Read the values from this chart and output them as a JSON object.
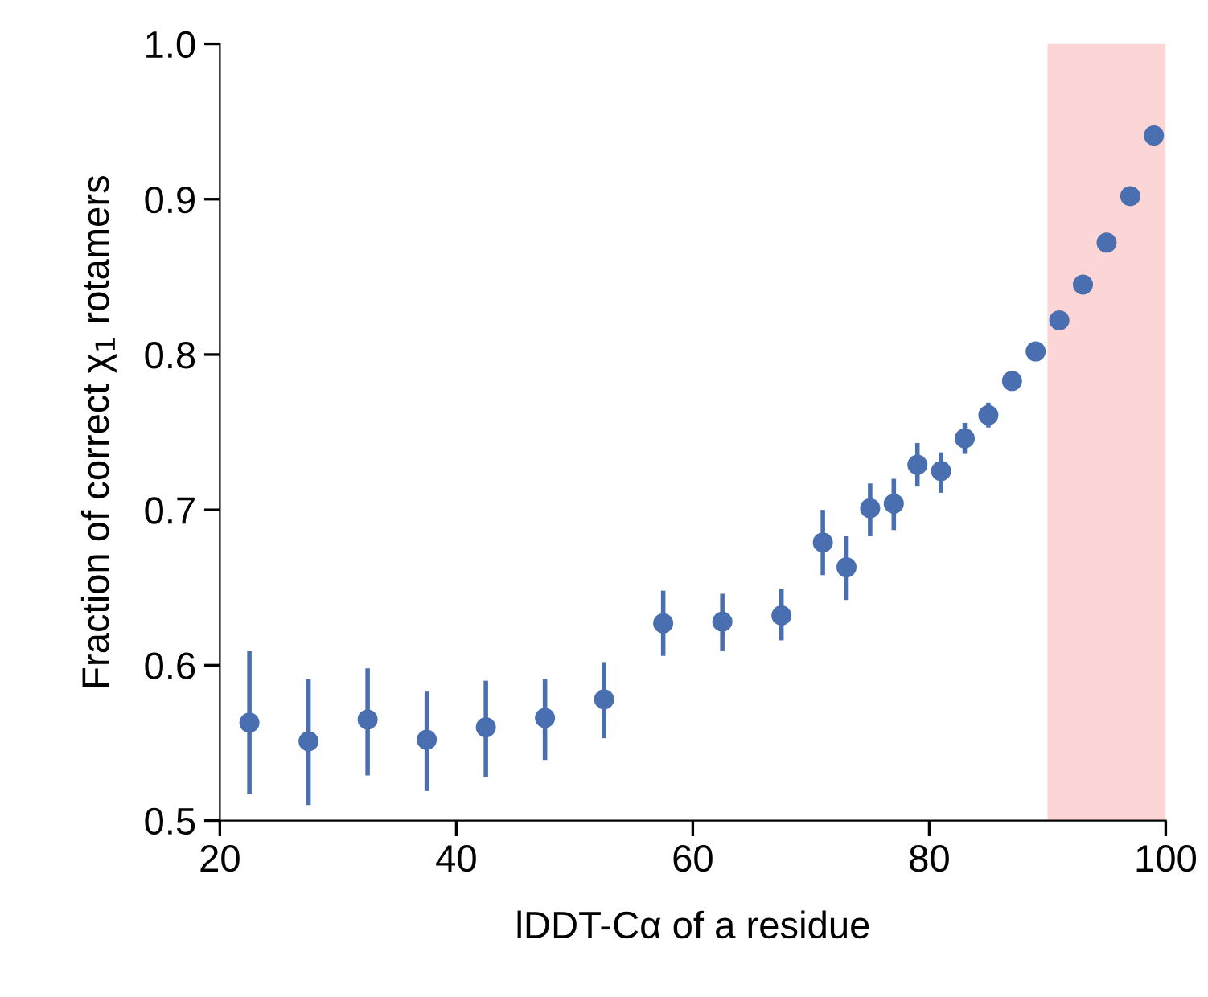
{
  "chart_data": {
    "type": "scatter",
    "xlabel": "lDDT-Cα of a residue",
    "ylabel": "Fraction of correct χ$_{1}$ rotamers",
    "x": [
      22.5,
      27.5,
      32.5,
      37.5,
      42.5,
      47.5,
      52.5,
      57.5,
      62.5,
      67.5,
      71,
      73,
      75,
      77,
      79,
      81,
      83,
      85,
      87,
      89,
      91,
      93,
      95,
      97,
      99
    ],
    "series": [
      {
        "color": "#4a6fb0",
        "values": [
          0.563,
          0.551,
          0.565,
          0.552,
          0.56,
          0.566,
          0.578,
          0.627,
          0.628,
          0.632,
          0.679,
          0.663,
          0.701,
          0.704,
          0.729,
          0.725,
          0.746,
          0.761,
          0.783,
          0.802,
          0.822,
          0.845,
          0.872,
          0.902,
          0.941
        ],
        "errors": [
          [
            0.517,
            0.609
          ],
          [
            0.51,
            0.591
          ],
          [
            0.529,
            0.598
          ],
          [
            0.519,
            0.583
          ],
          [
            0.528,
            0.59
          ],
          [
            0.539,
            0.591
          ],
          [
            0.553,
            0.602
          ],
          [
            0.606,
            0.648
          ],
          [
            0.609,
            0.646
          ],
          [
            0.616,
            0.649
          ],
          [
            0.658,
            0.7
          ],
          [
            0.642,
            0.683
          ],
          [
            0.683,
            0.717
          ],
          [
            0.687,
            0.72
          ],
          [
            0.715,
            0.743
          ],
          [
            0.711,
            0.737
          ],
          [
            0.736,
            0.756
          ],
          [
            0.753,
            0.769
          ],
          null,
          null,
          null,
          null,
          null,
          null,
          null
        ]
      }
    ],
    "xlim": [
      20,
      100
    ],
    "ylim": [
      0.5,
      1.0
    ],
    "xticks": [
      20,
      40,
      60,
      80,
      100
    ],
    "yticks": [
      0.5,
      0.6,
      0.7,
      0.8,
      0.9,
      {
        "value": 1,
        "label": "1.0"
      }
    ],
    "bands": [
      {
        "axis": "x",
        "from": 90,
        "to": 100,
        "color": "#fcd6d6"
      }
    ],
    "marker": "circle",
    "grid": false,
    "legend": false
  }
}
